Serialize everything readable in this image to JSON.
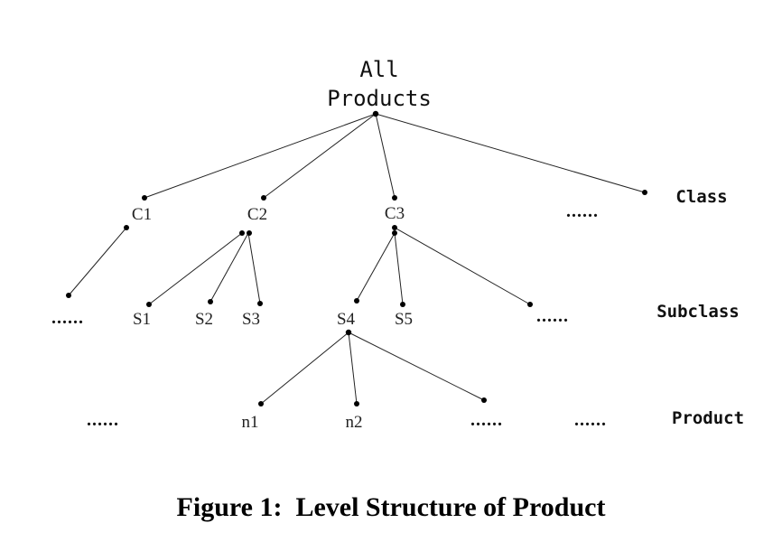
{
  "root": {
    "line1": "All",
    "line2": "Products"
  },
  "class_nodes": [
    "C1",
    "C2",
    "C3"
  ],
  "subclass_nodes": [
    "S1",
    "S2",
    "S3",
    "S4",
    "S5"
  ],
  "product_nodes": [
    "n1",
    "n2"
  ],
  "ellipsis": "......",
  "levels": {
    "class": "Class",
    "subclass": "Subclass",
    "product": "Product"
  },
  "caption": "Figure 1:  Level Structure of Product"
}
